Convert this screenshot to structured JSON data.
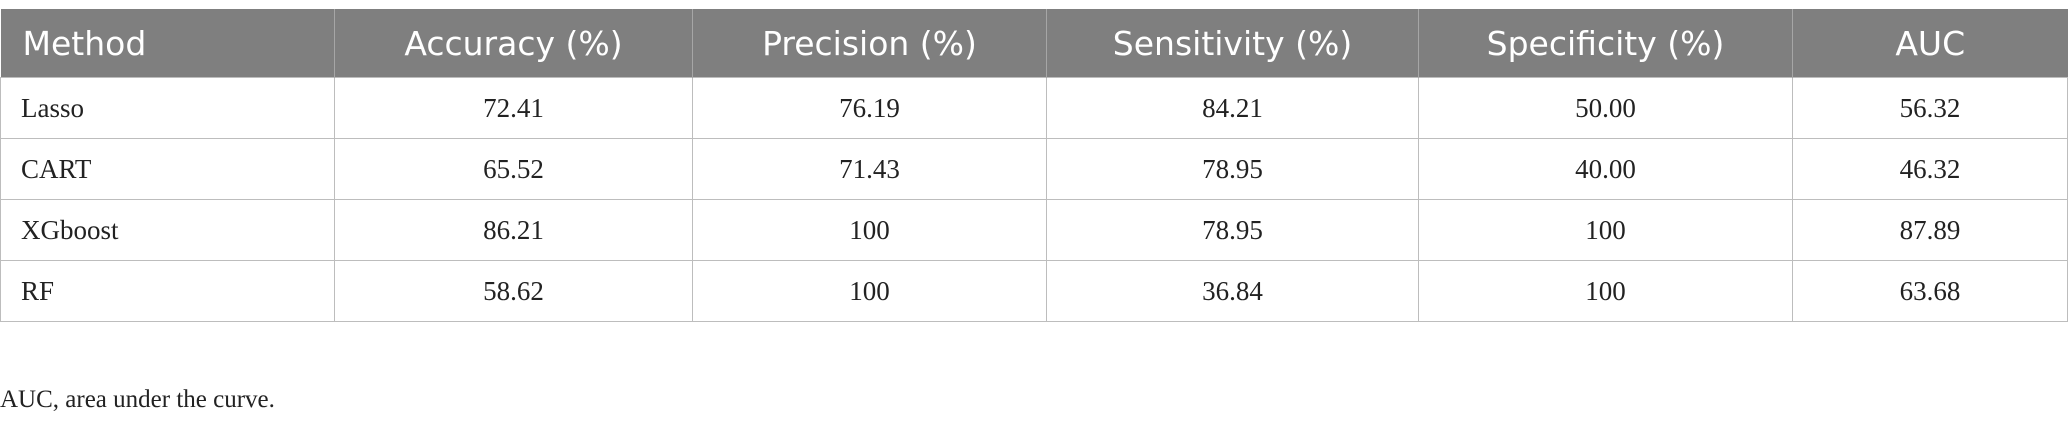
{
  "table": {
    "columns": [
      "Method",
      "Accuracy (%)",
      "Precision (%)",
      "Sensitivity (%)",
      "Specificity (%)",
      "AUC"
    ],
    "rows": [
      [
        "Lasso",
        "72.41",
        "76.19",
        "84.21",
        "50.00",
        "56.32"
      ],
      [
        "CART",
        "65.52",
        "71.43",
        "78.95",
        "40.00",
        "46.32"
      ],
      [
        "XGboost",
        "86.21",
        "100",
        "78.95",
        "100",
        "87.89"
      ],
      [
        "RF",
        "58.62",
        "100",
        "36.84",
        "100",
        "63.68"
      ]
    ]
  },
  "footnote": "AUC, area under the curve."
}
